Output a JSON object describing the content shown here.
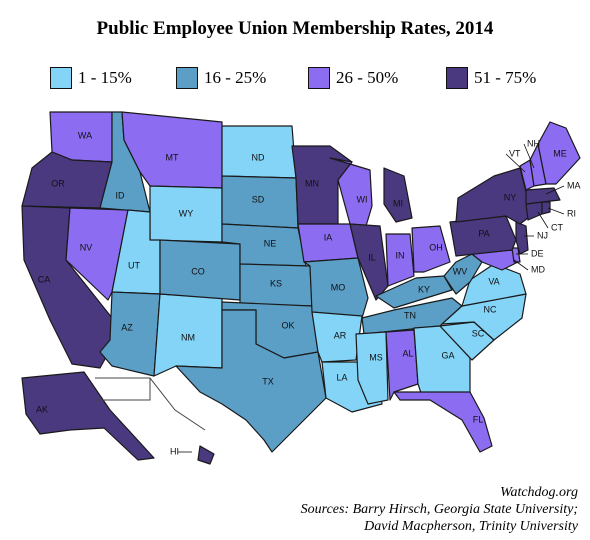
{
  "title": "Public Employee Union Membership Rates, 2014",
  "legend": [
    {
      "label": "1 - 15%",
      "color": "#84d4f7"
    },
    {
      "label": "16 - 25%",
      "color": "#5b9ec6"
    },
    {
      "label": "26 - 50%",
      "color": "#8c6cf0"
    },
    {
      "label": "51 - 75%",
      "color": "#4a397f"
    }
  ],
  "states": {
    "WA": 2,
    "OR": 3,
    "CA": 3,
    "NV": 2,
    "ID": 1,
    "MT": 2,
    "WY": 0,
    "UT": 0,
    "AZ": 1,
    "NM": 0,
    "CO": 1,
    "ND": 0,
    "SD": 1,
    "NE": 1,
    "KS": 1,
    "OK": 1,
    "TX": 1,
    "MN": 3,
    "IA": 2,
    "MO": 1,
    "AR": 0,
    "LA": 0,
    "WI": 2,
    "IL": 3,
    "MI": 3,
    "IN": 2,
    "OH": 2,
    "KY": 1,
    "TN": 1,
    "MS": 0,
    "AL": 2,
    "GA": 0,
    "FL": 2,
    "SC": 0,
    "NC": 0,
    "VA": 0,
    "WV": 1,
    "MD": 2,
    "DE": 2,
    "PA": 3,
    "NJ": 3,
    "NY": 3,
    "CT": 3,
    "RI": 3,
    "MA": 3,
    "VT": 2,
    "NH": 2,
    "ME": 2,
    "AK": 3,
    "HI": 3
  },
  "credits": {
    "source_site": "Watchdog.org",
    "line1": "Sources: Barry Hirsch, Georgia State University;",
    "line2": "David Macpherson, Trinity University"
  }
}
